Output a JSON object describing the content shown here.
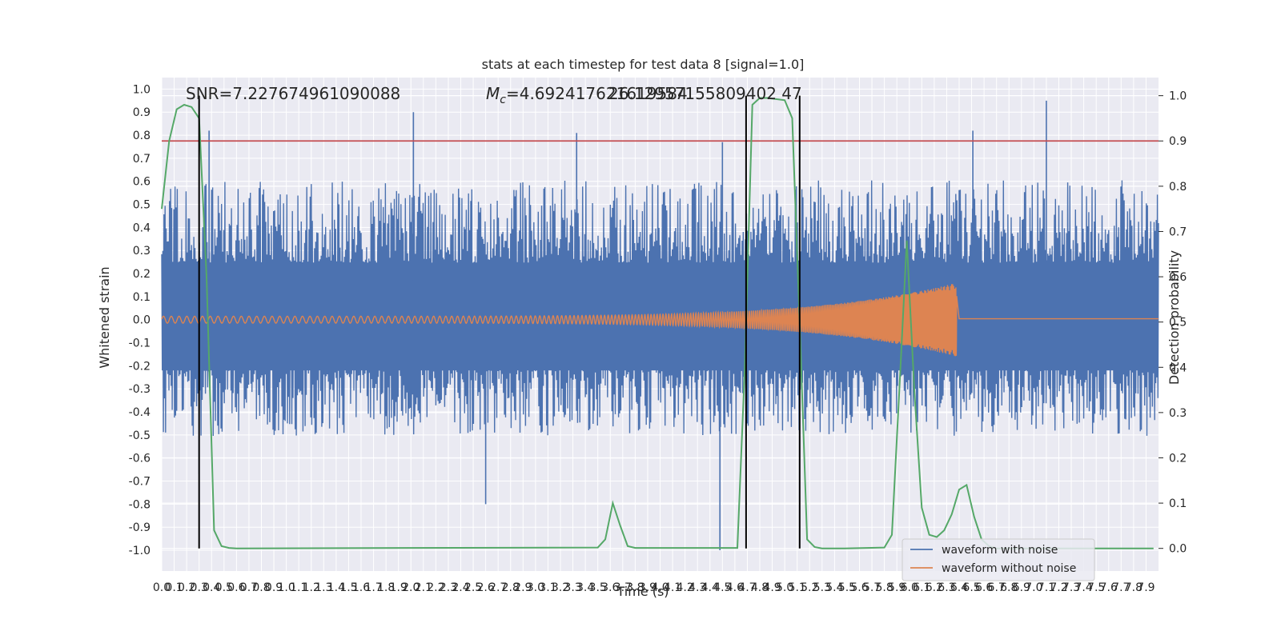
{
  "chart_data": {
    "type": "line",
    "title": "stats at each timestep for test data 8 [signal=1.0]",
    "xlabel": "Time (s)",
    "ylabel_left": "Whitened strain",
    "ylabel_right": "Detection probability",
    "xlim": [
      0.0,
      8.0
    ],
    "ylim_left": [
      -1.09,
      1.05
    ],
    "ylim_right": [
      -0.05,
      1.04
    ],
    "x_ticks": [
      "0.0",
      "0.1",
      "0.2",
      "0.3",
      "0.4",
      "0.5",
      "0.6",
      "0.7",
      "0.8",
      "0.9",
      "1.0",
      "1.1",
      "1.2",
      "1.3",
      "1.4",
      "1.5",
      "1.6",
      "1.7",
      "1.8",
      "1.9",
      "2.0",
      "2.1",
      "2.2",
      "2.3",
      "2.4",
      "2.5",
      "2.6",
      "2.7",
      "2.8",
      "2.9",
      "3.0",
      "3.1",
      "3.2",
      "3.3",
      "3.4",
      "3.5",
      "3.6",
      "3.7",
      "3.8",
      "3.9",
      "4.0",
      "4.1",
      "4.2",
      "4.3",
      "4.4",
      "4.5",
      "4.6",
      "4.7",
      "4.8",
      "4.9",
      "5.0",
      "5.1",
      "5.2",
      "5.3",
      "5.4",
      "5.5",
      "5.6",
      "5.7",
      "5.8",
      "5.9",
      "6.0",
      "6.1",
      "6.2",
      "6.3",
      "6.4",
      "6.5",
      "6.6",
      "6.7",
      "6.8",
      "6.9",
      "7.0",
      "7.1",
      "7.2",
      "7.3",
      "7.4",
      "7.5",
      "7.6",
      "7.7",
      "7.8",
      "7.9"
    ],
    "y_ticks_left": [
      "1.0",
      "0.9",
      "0.8",
      "0.7",
      "0.6",
      "0.5",
      "0.4",
      "0.3",
      "0.2",
      "0.1",
      "0.0",
      "-0.1",
      "-0.2",
      "-0.3",
      "-0.4",
      "-0.5",
      "-0.6",
      "-0.7",
      "-0.8",
      "-0.9",
      "-1.0"
    ],
    "y_ticks_right": [
      "1.0",
      "0.9",
      "0.8",
      "0.7",
      "0.6",
      "0.5",
      "0.4",
      "0.3",
      "0.2",
      "0.1",
      "0.0"
    ],
    "annotations": {
      "snr": "SNR=7.227674961090088",
      "mc_symbol": "M",
      "mc_subscript": "c",
      "mc_value": "=4.692417621619584",
      "mc_overlap": "26.12957155809402 47"
    },
    "threshold_right": 0.9,
    "vertical_lines_x": [
      0.3,
      4.69,
      5.12
    ],
    "series": [
      {
        "name": "waveform with noise",
        "color": "#4c72b0",
        "noise_envelope": {
          "typical_max": 0.55,
          "typical_min": -0.42
        },
        "spikes": [
          {
            "x": 0.38,
            "y": 0.82
          },
          {
            "x": 2.02,
            "y": 0.9
          },
          {
            "x": 3.33,
            "y": 0.81
          },
          {
            "x": 4.5,
            "y": 0.77
          },
          {
            "x": 4.48,
            "y": -1.0
          },
          {
            "x": 7.1,
            "y": 0.95
          },
          {
            "x": 6.51,
            "y": 0.82
          },
          {
            "x": 2.6,
            "y": -0.8
          },
          {
            "x": 0.3,
            "y": -0.67
          }
        ]
      },
      {
        "name": "waveform without noise",
        "color": "#dd8452",
        "chirp": {
          "start_amplitude": 0.015,
          "peak_amplitude": 0.16,
          "merger_x": 6.38,
          "cycles": 170
        }
      },
      {
        "name": "detection probability",
        "color": "#55a868",
        "axis": "right",
        "x": [
          0.0,
          0.06,
          0.12,
          0.18,
          0.24,
          0.3,
          0.36,
          0.42,
          0.48,
          0.54,
          0.6,
          3.5,
          3.56,
          3.62,
          3.68,
          3.74,
          3.8,
          4.62,
          4.68,
          4.74,
          4.8,
          4.86,
          5.0,
          5.06,
          5.12,
          5.18,
          5.24,
          5.3,
          5.36,
          5.42,
          5.48,
          5.8,
          5.86,
          5.92,
          5.98,
          6.04,
          6.1,
          6.16,
          6.22,
          6.28,
          6.34,
          6.4,
          6.46,
          6.52,
          6.58,
          6.64,
          6.7,
          7.96
        ],
        "y": [
          0.75,
          0.9,
          0.97,
          0.98,
          0.975,
          0.95,
          0.6,
          0.04,
          0.005,
          0.001,
          0.0,
          0.002,
          0.02,
          0.1,
          0.05,
          0.005,
          0.001,
          0.001,
          0.4,
          0.98,
          0.995,
          0.995,
          0.99,
          0.95,
          0.5,
          0.02,
          0.003,
          0.0,
          0.0,
          0.0,
          0.0,
          0.002,
          0.03,
          0.35,
          0.68,
          0.35,
          0.09,
          0.03,
          0.025,
          0.04,
          0.075,
          0.13,
          0.14,
          0.07,
          0.02,
          0.005,
          0.0,
          0.0
        ]
      },
      {
        "name": "threshold",
        "color": "#c44e52",
        "axis": "right",
        "y": 0.9
      }
    ],
    "legend": {
      "placement": "lower-right",
      "entries": [
        "waveform with noise",
        "waveform without noise"
      ]
    },
    "grid": true,
    "background": "#eaeaf2"
  }
}
